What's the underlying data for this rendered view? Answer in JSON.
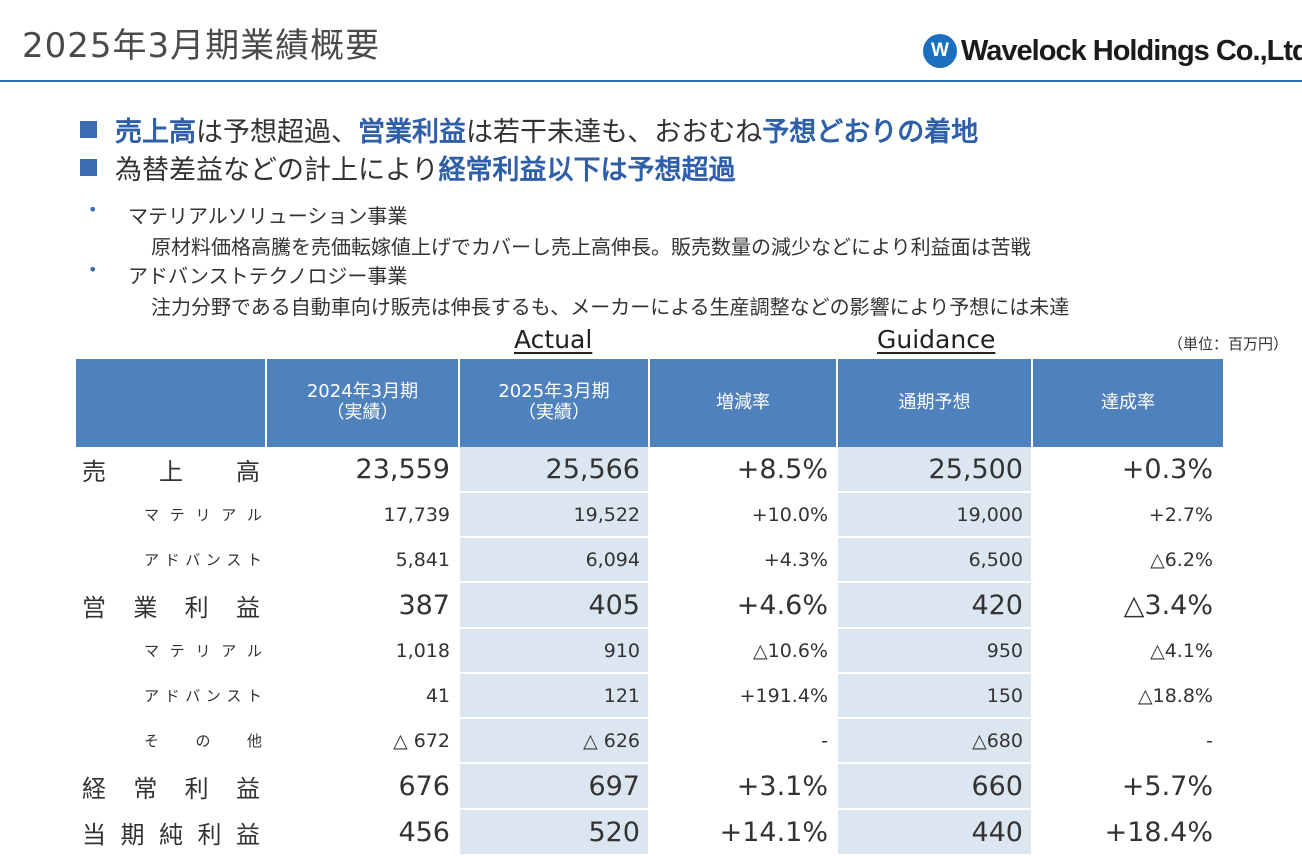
{
  "page": {
    "title": "2025年3月期業績概要",
    "logo_mark": "W",
    "logo_text": "Wavelock Holdings Co.,Ltd."
  },
  "headlines": [
    {
      "parts": [
        {
          "text": "売上高",
          "hl": true
        },
        {
          "text": "は予想超過、",
          "hl": false
        },
        {
          "text": "営業利益",
          "hl": true
        },
        {
          "text": "は若干未達も、おおむね",
          "hl": false
        },
        {
          "text": "予想どおりの着地",
          "hl": true
        }
      ]
    },
    {
      "parts": [
        {
          "text": "為替差益などの計上により",
          "hl": false
        },
        {
          "text": "経常利益以下は予想超過",
          "hl": true
        }
      ]
    }
  ],
  "bullets": [
    {
      "marker": "•",
      "title": "マテリアルソリューション事業",
      "detail": "原材料価格高騰を売価転嫁値上げでカバーし売上高伸長。販売数量の減少などにより利益面は苦戦"
    },
    {
      "marker": "•",
      "title": "アドバンストテクノロジー事業",
      "detail": "注力分野である自動車向け販売は伸長するも、メーカーによる生産調整などの影響により予想には未達"
    }
  ],
  "captions": {
    "actual": "Actual",
    "guidance": "Guidance",
    "unit": "（単位：百万円）"
  },
  "table": {
    "headers": [
      {
        "l1": "",
        "l2": ""
      },
      {
        "l1": "2024年3月期",
        "l2": "（実績）"
      },
      {
        "l1": "2025年3月期",
        "l2": "（実績）"
      },
      {
        "l1": "増減率",
        "l2": ""
      },
      {
        "l1": "通期予想",
        "l2": ""
      },
      {
        "l1": "達成率",
        "l2": ""
      }
    ],
    "rows": [
      {
        "type": "main",
        "label": [
          "売",
          "上",
          "高"
        ],
        "values": [
          "23,559",
          "25,566",
          "+8.5%",
          "25,500",
          "+0.3%"
        ]
      },
      {
        "type": "sub",
        "label": [
          "マ",
          "テ",
          "リ",
          "ア",
          "ル"
        ],
        "values": [
          "17,739",
          "19,522",
          "+10.0%",
          "19,000",
          "+2.7%"
        ]
      },
      {
        "type": "sub",
        "label": [
          "ア",
          "ド",
          "バ",
          "ン",
          "ス",
          "ト"
        ],
        "values": [
          "5,841",
          "6,094",
          "+4.3%",
          "6,500",
          "△6.2%"
        ]
      },
      {
        "type": "main",
        "label": [
          "営",
          "業",
          "利",
          "益"
        ],
        "values": [
          "387",
          "405",
          "+4.6%",
          "420",
          "△3.4%"
        ]
      },
      {
        "type": "sub",
        "label": [
          "マ",
          "テ",
          "リ",
          "ア",
          "ル"
        ],
        "values": [
          "1,018",
          "910",
          "△10.6%",
          "950",
          "△4.1%"
        ]
      },
      {
        "type": "sub",
        "label": [
          "ア",
          "ド",
          "バ",
          "ン",
          "ス",
          "ト"
        ],
        "values": [
          "41",
          "121",
          "+191.4%",
          "150",
          "△18.8%"
        ]
      },
      {
        "type": "sub",
        "label": [
          "そ",
          "の",
          "他"
        ],
        "values": [
          "△ 672",
          "△ 626",
          "-",
          "△680",
          "-"
        ]
      },
      {
        "type": "main",
        "label": [
          "経",
          "常",
          "利",
          "益"
        ],
        "values": [
          "676",
          "697",
          "+3.1%",
          "660",
          "+5.7%"
        ]
      },
      {
        "type": "main",
        "label": [
          "当",
          "期",
          "純",
          "利",
          "益"
        ],
        "values": [
          "456",
          "520",
          "+14.1%",
          "440",
          "+18.4%"
        ]
      }
    ]
  },
  "colors": {
    "accent": "#2f5fa8",
    "header_fill": "#4f81bd",
    "cell_shade": "#dce6f1",
    "rule": "#2e6fb2"
  }
}
